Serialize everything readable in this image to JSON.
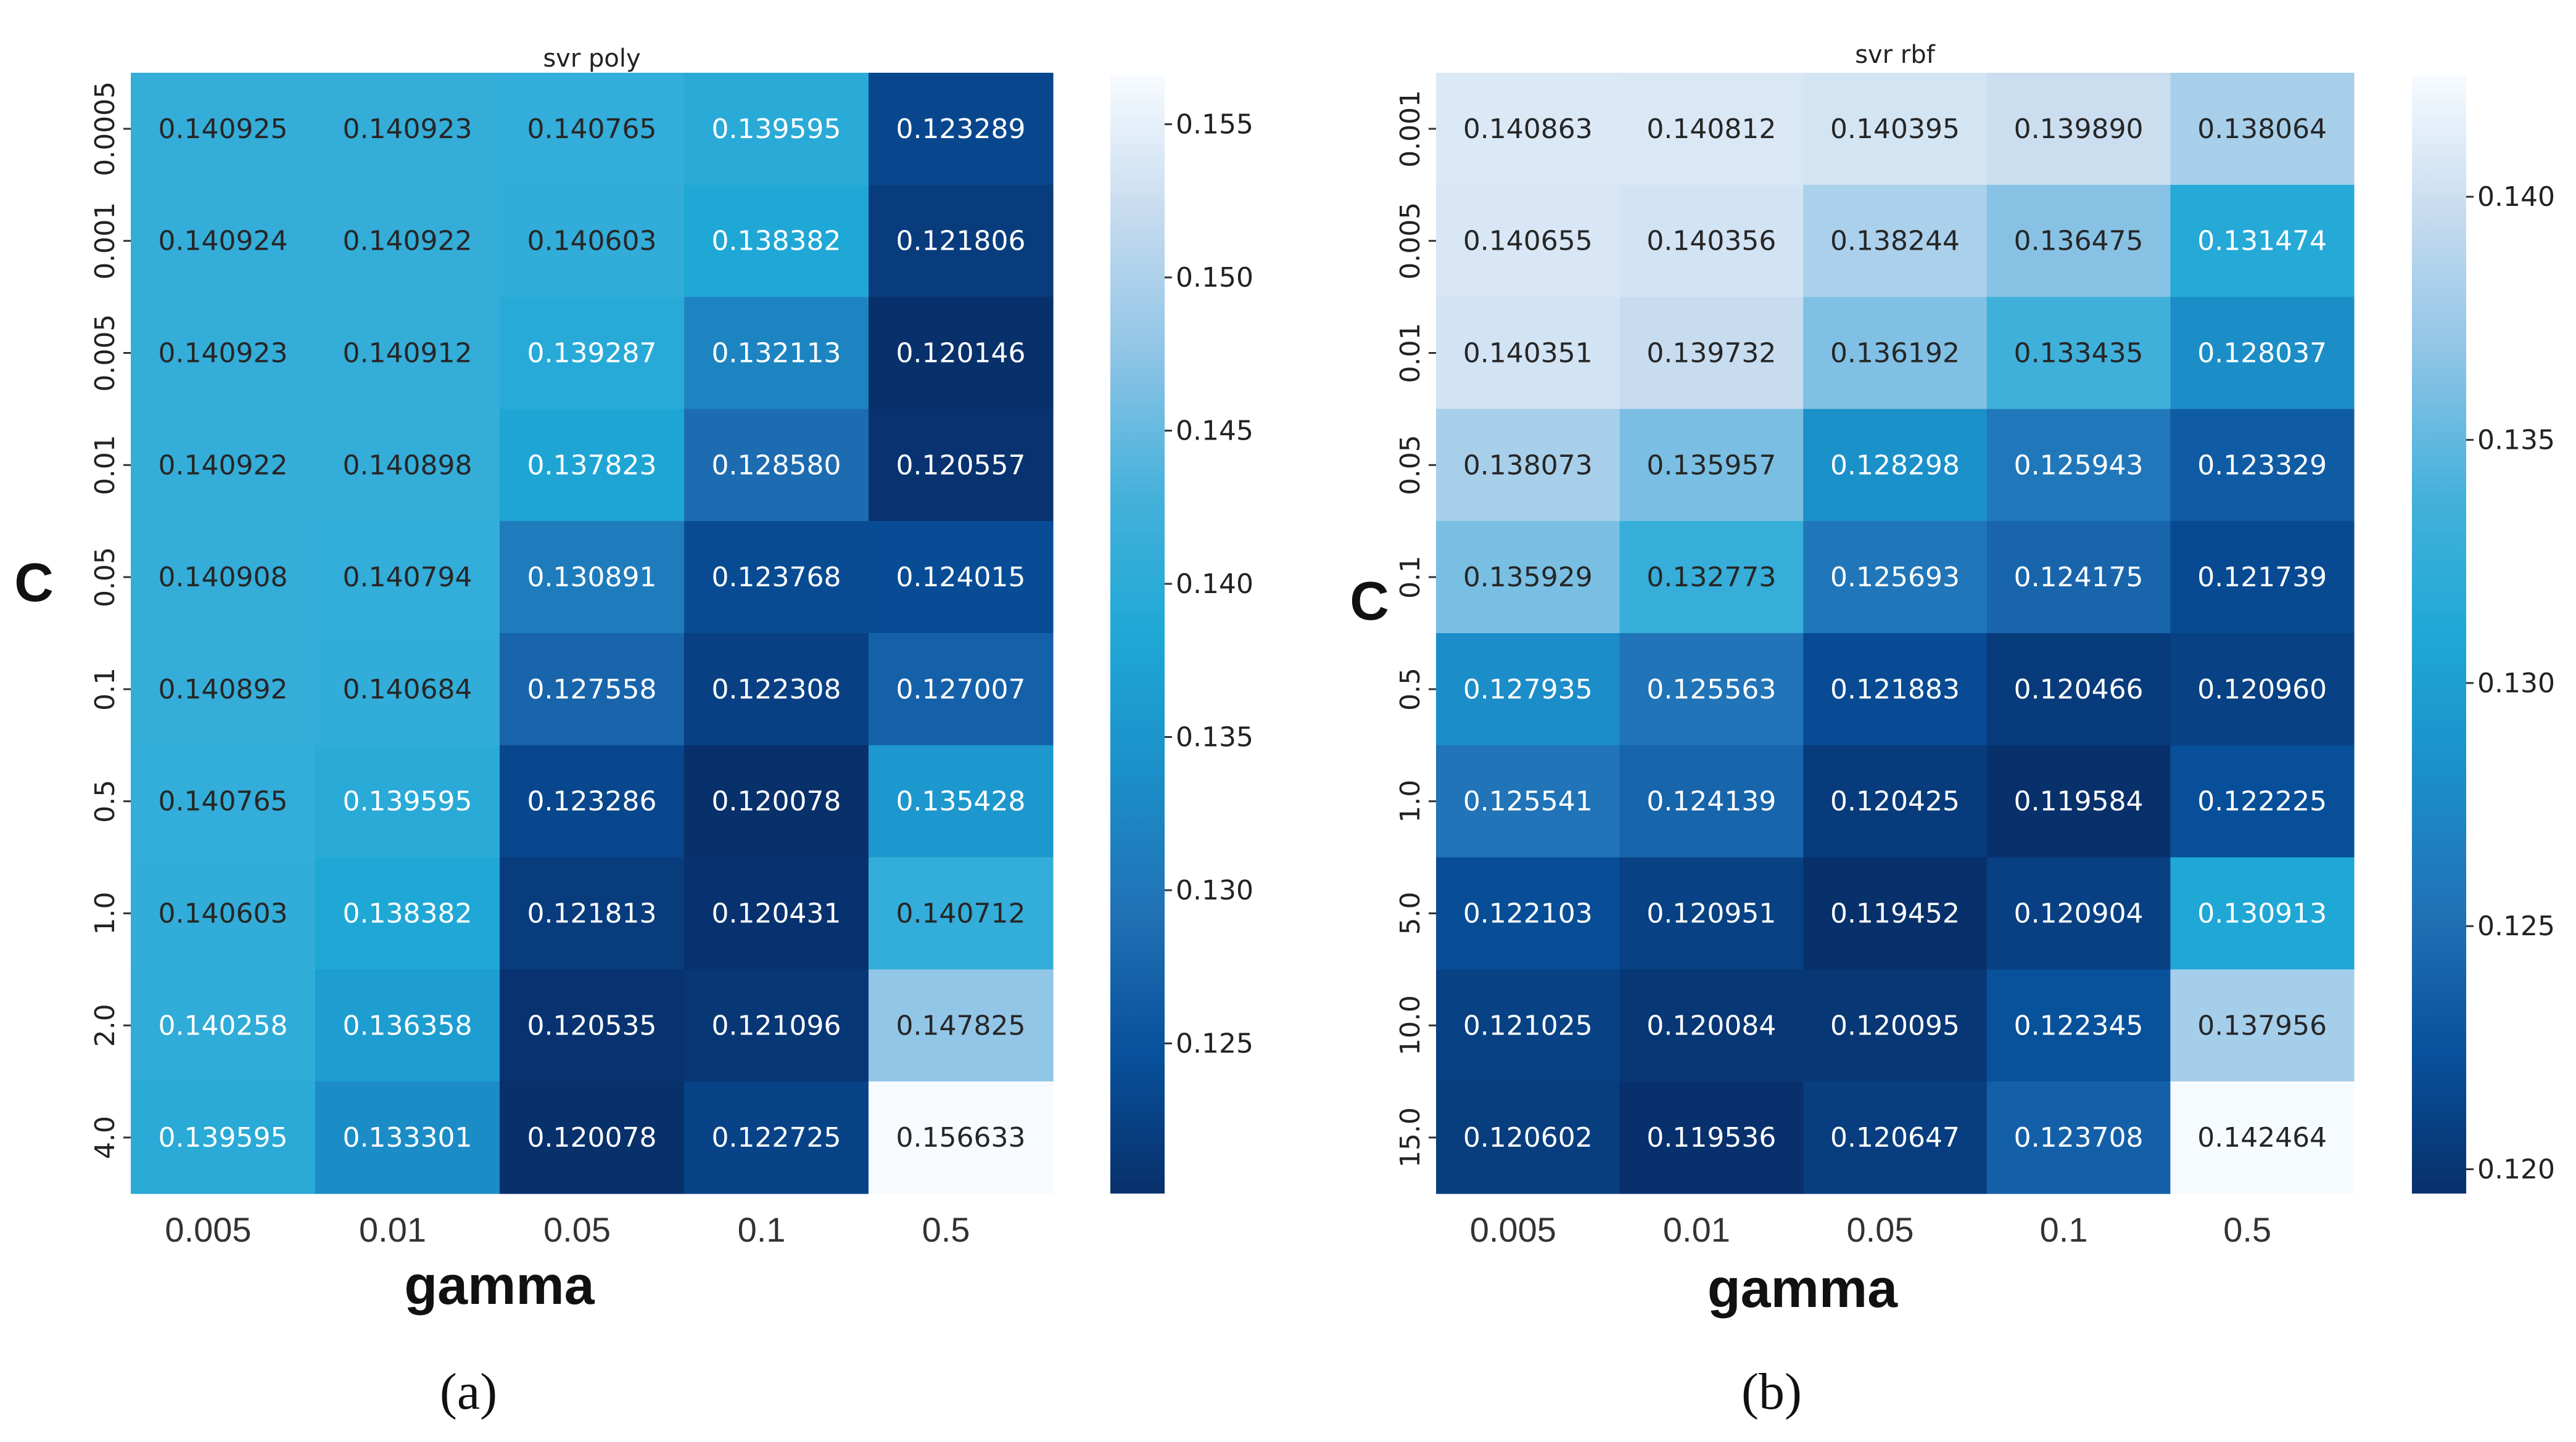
{
  "chart_data": [
    {
      "type": "heatmap",
      "title": "svr poly",
      "xlabel": "gamma",
      "ylabel": "C",
      "panel_label": "(a)",
      "x_categories": [
        "0.005",
        "0.01",
        "0.05",
        "0.1",
        "0.5"
      ],
      "y_categories": [
        "0.0005",
        "0.001",
        "0.005",
        "0.01",
        "0.05",
        "0.1",
        "0.5",
        "1.0",
        "2.0",
        "4.0"
      ],
      "values": [
        [
          0.140925,
          0.140923,
          0.140765,
          0.139595,
          0.123289
        ],
        [
          0.140924,
          0.140922,
          0.140603,
          0.138382,
          0.121806
        ],
        [
          0.140923,
          0.140912,
          0.139287,
          0.132113,
          0.120146
        ],
        [
          0.140922,
          0.140898,
          0.137823,
          0.12858,
          0.120557
        ],
        [
          0.140908,
          0.140794,
          0.130891,
          0.123768,
          0.124015
        ],
        [
          0.140892,
          0.140684,
          0.127558,
          0.122308,
          0.127007
        ],
        [
          0.140765,
          0.139595,
          0.123286,
          0.120078,
          0.135428
        ],
        [
          0.140603,
          0.138382,
          0.121813,
          0.120431,
          0.140712
        ],
        [
          0.140258,
          0.136358,
          0.120535,
          0.121096,
          0.147825
        ],
        [
          0.139595,
          0.133301,
          0.120078,
          0.122725,
          0.156633
        ]
      ],
      "value_labels": [
        [
          "0.140925",
          "0.140923",
          "0.140765",
          "0.139595",
          "0.123289"
        ],
        [
          "0.140924",
          "0.140922",
          "0.140603",
          "0.138382",
          "0.121806"
        ],
        [
          "0.140923",
          "0.140912",
          "0.139287",
          "0.132113",
          "0.120146"
        ],
        [
          "0.140922",
          "0.140898",
          "0.137823",
          "0.128580",
          "0.120557"
        ],
        [
          "0.140908",
          "0.140794",
          "0.130891",
          "0.123768",
          "0.124015"
        ],
        [
          "0.140892",
          "0.140684",
          "0.127558",
          "0.122308",
          "0.127007"
        ],
        [
          "0.140765",
          "0.139595",
          "0.123286",
          "0.120078",
          "0.135428"
        ],
        [
          "0.140603",
          "0.138382",
          "0.121813",
          "0.120431",
          "0.140712"
        ],
        [
          "0.140258",
          "0.136358",
          "0.120535",
          "0.121096",
          "0.147825"
        ],
        [
          "0.139595",
          "0.133301",
          "0.120078",
          "0.122725",
          "0.156633"
        ]
      ],
      "colorbar": {
        "vmin": 0.1201,
        "vmax": 0.1566,
        "ticks": [
          0.125,
          0.13,
          0.135,
          0.14,
          0.145,
          0.15,
          0.155
        ],
        "tick_labels": [
          "0.125",
          "0.130",
          "0.135",
          "0.140",
          "0.145",
          "0.150",
          "0.155"
        ]
      },
      "colormap": "Blues_r"
    },
    {
      "type": "heatmap",
      "title": "svr rbf",
      "xlabel": "gamma",
      "ylabel": "C",
      "panel_label": "(b)",
      "x_categories": [
        "0.005",
        "0.01",
        "0.05",
        "0.1",
        "0.5"
      ],
      "y_categories": [
        "0.001",
        "0.005",
        "0.01",
        "0.05",
        "0.1",
        "0.5",
        "1.0",
        "5.0",
        "10.0",
        "15.0"
      ],
      "values": [
        [
          0.140863,
          0.140812,
          0.140395,
          0.13989,
          0.138064
        ],
        [
          0.140655,
          0.140356,
          0.138244,
          0.136475,
          0.131474
        ],
        [
          0.140351,
          0.139732,
          0.136192,
          0.133435,
          0.128037
        ],
        [
          0.138073,
          0.135957,
          0.128298,
          0.125943,
          0.123329
        ],
        [
          0.135929,
          0.132773,
          0.125693,
          0.124175,
          0.121739
        ],
        [
          0.127935,
          0.125563,
          0.121883,
          0.120466,
          0.12096
        ],
        [
          0.125541,
          0.124139,
          0.120425,
          0.119584,
          0.122225
        ],
        [
          0.122103,
          0.120951,
          0.119452,
          0.120904,
          0.130913
        ],
        [
          0.121025,
          0.120084,
          0.120095,
          0.122345,
          0.137956
        ],
        [
          0.120602,
          0.119536,
          0.120647,
          0.123708,
          0.142464
        ]
      ],
      "value_labels": [
        [
          "0.140863",
          "0.140812",
          "0.140395",
          "0.139890",
          "0.138064"
        ],
        [
          "0.140655",
          "0.140356",
          "0.138244",
          "0.136475",
          "0.131474"
        ],
        [
          "0.140351",
          "0.139732",
          "0.136192",
          "0.133435",
          "0.128037"
        ],
        [
          "0.138073",
          "0.135957",
          "0.128298",
          "0.125943",
          "0.123329"
        ],
        [
          "0.135929",
          "0.132773",
          "0.125693",
          "0.124175",
          "0.121739"
        ],
        [
          "0.127935",
          "0.125563",
          "0.121883",
          "0.120466",
          "0.120960"
        ],
        [
          "0.125541",
          "0.124139",
          "0.120425",
          "0.119584",
          "0.122225"
        ],
        [
          "0.122103",
          "0.120951",
          "0.119452",
          "0.120904",
          "0.130913"
        ],
        [
          "0.121025",
          "0.120084",
          "0.120095",
          "0.122345",
          "0.137956"
        ],
        [
          "0.120602",
          "0.119536",
          "0.120647",
          "0.123708",
          "0.142464"
        ]
      ],
      "colorbar": {
        "vmin": 0.1195,
        "vmax": 0.1425,
        "ticks": [
          0.12,
          0.125,
          0.13,
          0.135,
          0.14
        ],
        "tick_labels": [
          "0.120",
          "0.125",
          "0.130",
          "0.135",
          "0.140"
        ]
      },
      "colormap": "Blues_r"
    }
  ]
}
